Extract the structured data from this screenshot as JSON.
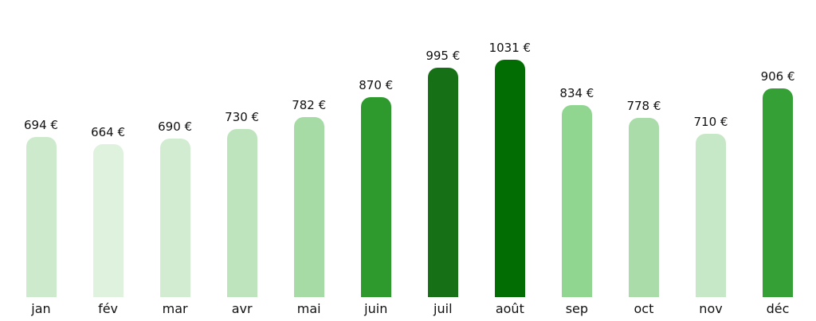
{
  "chart_data": {
    "type": "bar",
    "title": "",
    "xlabel": "",
    "ylabel": "",
    "unit": "€",
    "grid": false,
    "legend": false,
    "axes_visible": false,
    "background_color": "#ffffff",
    "text_color": "#111111",
    "ylim": [
      0,
      1090
    ],
    "categories": [
      "jan",
      "fév",
      "mar",
      "avr",
      "mai",
      "juin",
      "juil",
      "août",
      "sep",
      "oct",
      "nov",
      "déc"
    ],
    "values": [
      694,
      664,
      690,
      730,
      782,
      870,
      995,
      1031,
      834,
      778,
      710,
      906
    ],
    "value_labels": [
      "694 €",
      "664 €",
      "690 €",
      "730 €",
      "782 €",
      "870 €",
      "995 €",
      "1031 €",
      "834 €",
      "778 €",
      "710 €",
      "906 €"
    ],
    "bar_colors": [
      "#cdeacd",
      "#def2de",
      "#d1ecd1",
      "#bde4bd",
      "#a6dba6",
      "#2e9a2e",
      "#167116",
      "#026d02",
      "#90d690",
      "#a9dca9",
      "#c7e8c7",
      "#35a035"
    ]
  }
}
